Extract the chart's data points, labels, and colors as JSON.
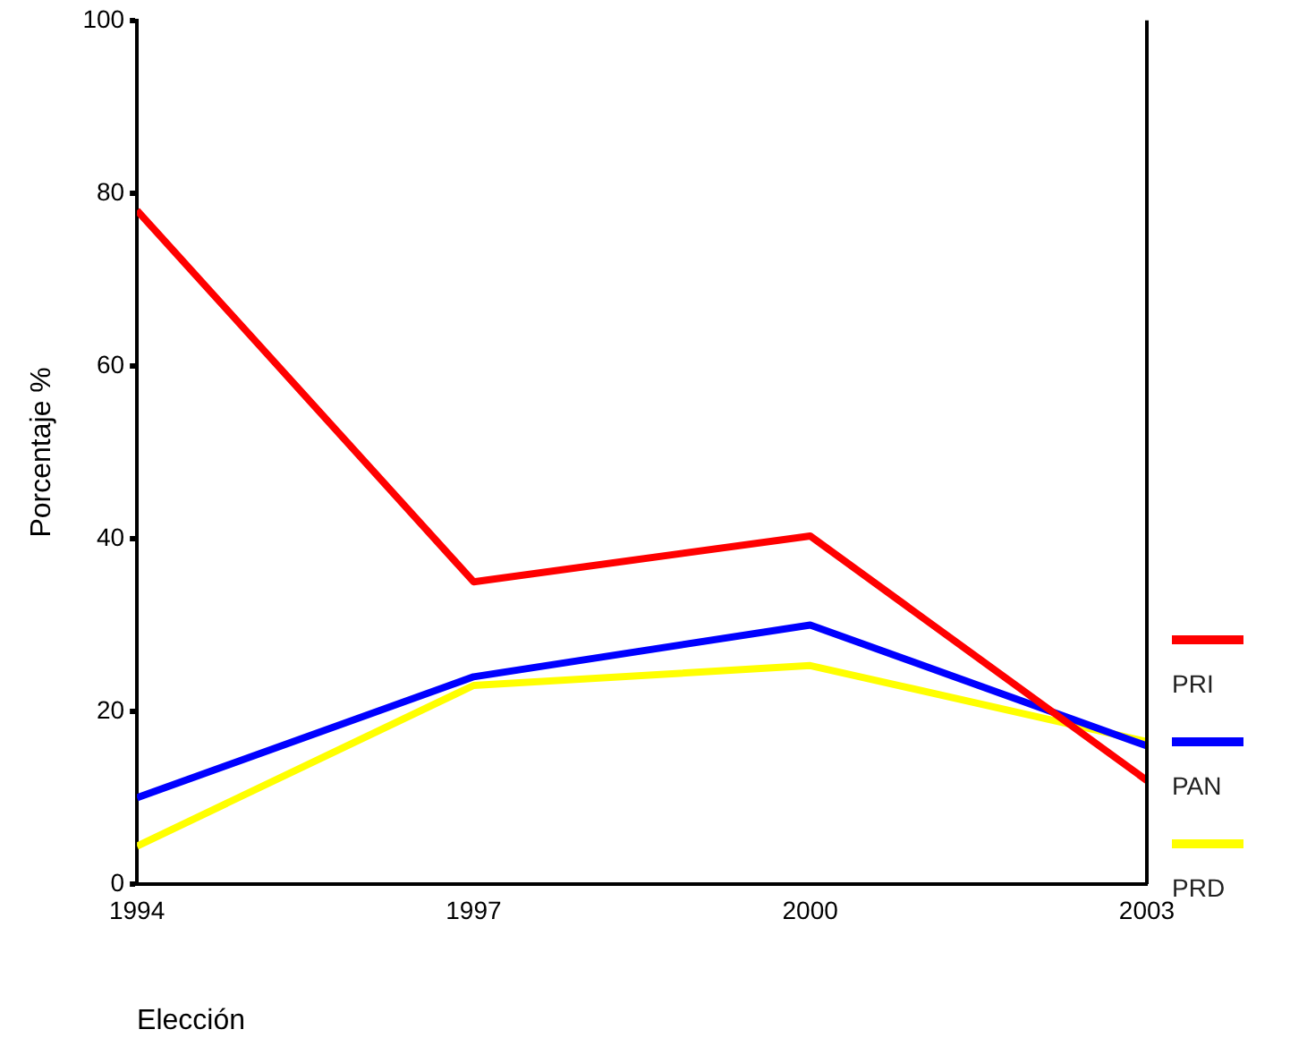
{
  "chart_data": {
    "type": "line",
    "xlabel": "Elección",
    "ylabel": "Porcentaje %",
    "x": [
      1994,
      1997,
      2000,
      2003
    ],
    "xlim": [
      1994,
      2003
    ],
    "xticks": [
      1994,
      1997,
      2000,
      2003
    ],
    "ylim": [
      0,
      100
    ],
    "yticks": [
      0,
      20,
      40,
      60,
      80,
      100
    ],
    "grid": false,
    "legend": "right",
    "marker": "none",
    "line_style": "solid",
    "series": [
      {
        "name": "PRI",
        "color": "#ff0000",
        "values": [
          78,
          35,
          40.3,
          12
        ]
      },
      {
        "name": "PAN",
        "color": "#0000ff",
        "values": [
          10,
          24,
          30,
          16
        ]
      },
      {
        "name": "PRD",
        "color": "#ffff00",
        "values": [
          4.4,
          23,
          25.3,
          16.5
        ]
      }
    ]
  }
}
